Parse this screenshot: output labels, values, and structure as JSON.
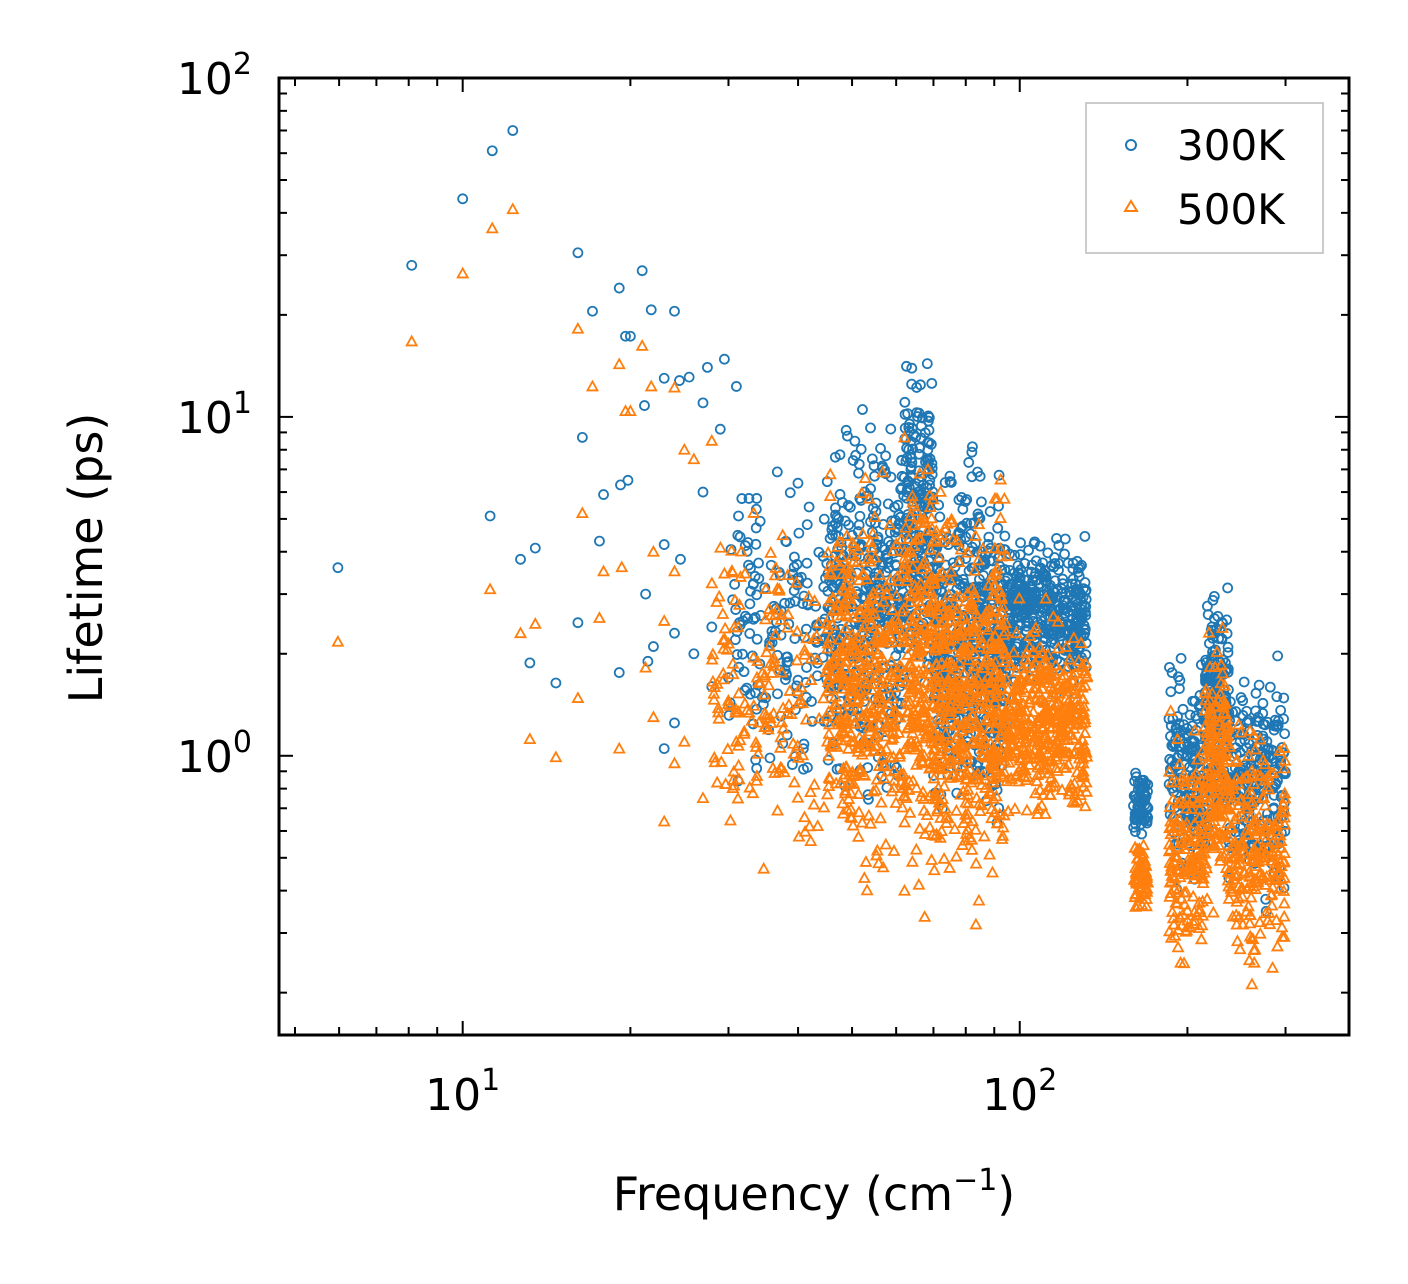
{
  "chart_data": {
    "type": "scatter",
    "title": "",
    "xlabel": "Frequency (cm",
    "xlabel_sup": "−1",
    "xlabel_end": ")",
    "ylabel": "Lifetime (ps)",
    "xscale": "log",
    "yscale": "log",
    "xlim": [
      4.68,
      390
    ],
    "ylim": [
      0.15,
      100
    ],
    "grid": false,
    "legend_position": "top-right",
    "x_ticks": [
      {
        "value": 10,
        "base": "10",
        "exp": "1"
      },
      {
        "value": 100,
        "base": "10",
        "exp": "2"
      }
    ],
    "y_ticks": [
      {
        "value": 1,
        "base": "10",
        "exp": "0"
      },
      {
        "value": 10,
        "base": "10",
        "exp": "1"
      },
      {
        "value": 100,
        "base": "10",
        "exp": "2"
      }
    ],
    "series": [
      {
        "name": "300K",
        "marker": "circle",
        "color": "#1f77b4",
        "points": [
          [
            5.97,
            3.59
          ],
          [
            8.1,
            28
          ],
          [
            10,
            44
          ],
          [
            11.3,
            61
          ],
          [
            12.3,
            70
          ],
          [
            11.2,
            5.1
          ],
          [
            12.7,
            3.8
          ],
          [
            13.5,
            4.1
          ],
          [
            13.2,
            1.88
          ],
          [
            14.7,
            1.64
          ],
          [
            16.1,
            30.5
          ],
          [
            16.4,
            8.7
          ],
          [
            17.1,
            20.5
          ],
          [
            16.1,
            2.47
          ],
          [
            19.1,
            24
          ],
          [
            21,
            27
          ],
          [
            21.8,
            20.7
          ],
          [
            24,
            20.5
          ],
          [
            19.6,
            17.3
          ],
          [
            20,
            17.3
          ],
          [
            21.2,
            10.8
          ],
          [
            23,
            13
          ],
          [
            19.1,
            1.76
          ],
          [
            21.3,
            3.0
          ],
          [
            17.6,
            4.3
          ],
          [
            17.9,
            5.9
          ],
          [
            19.2,
            6.3
          ],
          [
            19.8,
            6.5
          ],
          [
            23,
            4.2
          ],
          [
            24.6,
            3.8
          ],
          [
            24.5,
            12.8
          ],
          [
            25.5,
            13.1
          ],
          [
            27.5,
            14
          ],
          [
            29.5,
            14.8
          ],
          [
            27,
            11
          ],
          [
            29,
            9.2
          ],
          [
            31,
            12.3
          ],
          [
            22,
            2.1
          ],
          [
            24,
            2.3
          ],
          [
            26,
            2.0
          ],
          [
            28,
            1.6
          ],
          [
            21.5,
            1.9
          ],
          [
            23,
            1.05
          ],
          [
            24,
            1.25
          ],
          [
            27,
            6
          ],
          [
            30,
            1.7
          ],
          [
            28,
            2.4
          ]
        ],
        "dense_regions": [
          {
            "x": [
              30,
              45
            ],
            "y": [
              0.6,
              9
            ],
            "n": 160
          },
          {
            "x": [
              45,
              62
            ],
            "y": [
              0.6,
              13
            ],
            "n": 420
          },
          {
            "x": [
              62,
              70
            ],
            "y": [
              0.9,
              21
            ],
            "n": 220
          },
          {
            "x": [
              70,
              95
            ],
            "y": [
              0.45,
              10
            ],
            "n": 520
          },
          {
            "x": [
              95,
              132
            ],
            "y": [
              1.4,
              5
            ],
            "n": 420
          },
          {
            "x": [
              160,
              170
            ],
            "y": [
              0.55,
              0.97
            ],
            "n": 70
          },
          {
            "x": [
              185,
              215
            ],
            "y": [
              0.33,
              2.2
            ],
            "n": 170
          },
          {
            "x": [
              215,
              237
            ],
            "y": [
              0.5,
              3.9
            ],
            "n": 180
          },
          {
            "x": [
              237,
              300
            ],
            "y": [
              0.3,
              2.4
            ],
            "n": 230
          }
        ]
      },
      {
        "name": "500K",
        "marker": "triangle",
        "color": "#ff7f0e",
        "points": [
          [
            5.97,
            2.17
          ],
          [
            8.1,
            16.7
          ],
          [
            10,
            26.5
          ],
          [
            11.3,
            36
          ],
          [
            12.3,
            41
          ],
          [
            11.2,
            3.1
          ],
          [
            12.7,
            2.3
          ],
          [
            13.5,
            2.45
          ],
          [
            13.2,
            1.12
          ],
          [
            14.7,
            0.99
          ],
          [
            16.1,
            18.2
          ],
          [
            16.4,
            5.2
          ],
          [
            17.1,
            12.3
          ],
          [
            16.1,
            1.48
          ],
          [
            19.1,
            14.3
          ],
          [
            21,
            16.2
          ],
          [
            21.8,
            12.3
          ],
          [
            24,
            12.2
          ],
          [
            19.6,
            10.4
          ],
          [
            20,
            10.4
          ],
          [
            17.6,
            2.55
          ],
          [
            17.9,
            3.5
          ],
          [
            19.3,
            3.6
          ],
          [
            23,
            2.5
          ],
          [
            19.1,
            1.05
          ],
          [
            21.3,
            1.82
          ],
          [
            22,
            1.3
          ],
          [
            24,
            0.95
          ],
          [
            25,
            1.1
          ],
          [
            27,
            0.75
          ],
          [
            23,
            0.64
          ],
          [
            26,
            7.5
          ],
          [
            28,
            8.5
          ],
          [
            25,
            8
          ],
          [
            22,
            4.0
          ],
          [
            24,
            3.5
          ]
        ],
        "dense_regions": [
          {
            "x": [
              28,
              45
            ],
            "y": [
              0.35,
              7
            ],
            "n": 180
          },
          {
            "x": [
              45,
              62
            ],
            "y": [
              0.32,
              8.5
            ],
            "n": 420
          },
          {
            "x": [
              62,
              70
            ],
            "y": [
              0.3,
              11
            ],
            "n": 220
          },
          {
            "x": [
              70,
              95
            ],
            "y": [
              0.28,
              8
            ],
            "n": 520
          },
          {
            "x": [
              95,
              132
            ],
            "y": [
              0.55,
              3
            ],
            "n": 420
          },
          {
            "x": [
              160,
              170
            ],
            "y": [
              0.32,
              0.6
            ],
            "n": 70
          },
          {
            "x": [
              185,
              215
            ],
            "y": [
              0.2,
              1.5
            ],
            "n": 170
          },
          {
            "x": [
              215,
              237
            ],
            "y": [
              0.28,
              2.7
            ],
            "n": 180
          },
          {
            "x": [
              237,
              300
            ],
            "y": [
              0.19,
              1.5
            ],
            "n": 230
          }
        ]
      }
    ]
  }
}
